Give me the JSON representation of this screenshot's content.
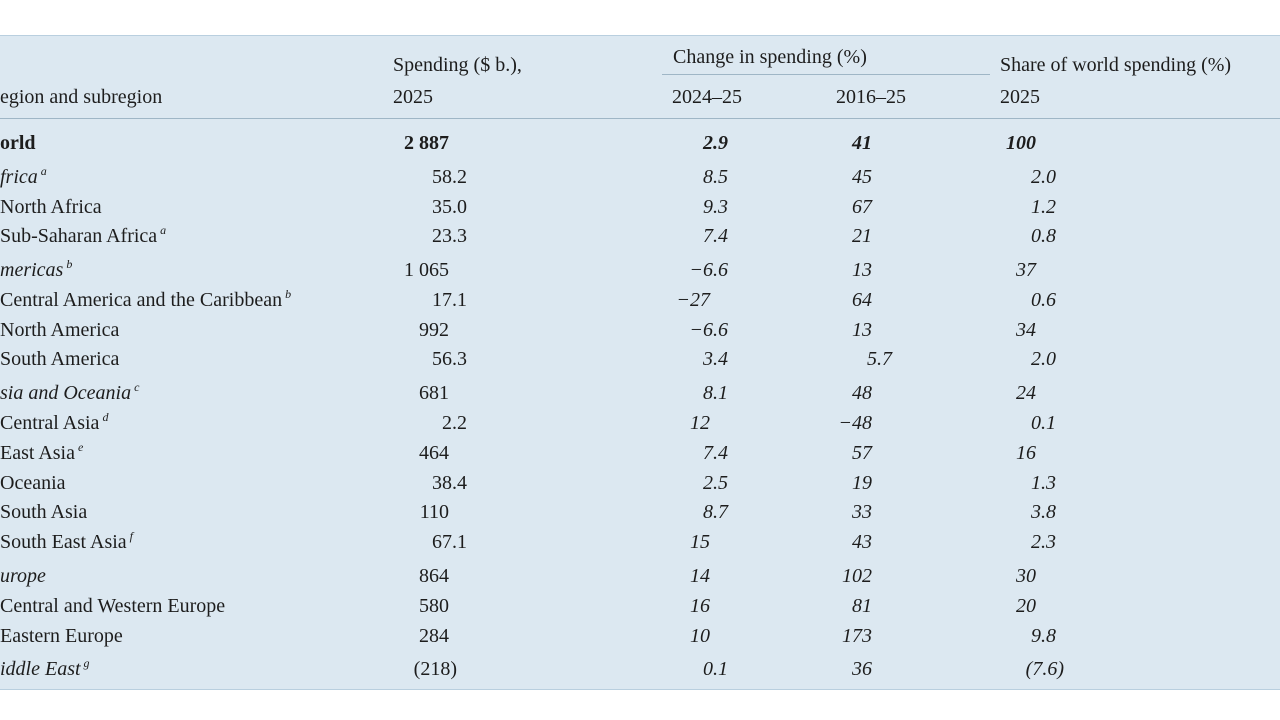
{
  "header": {
    "region_label": "egion and subregion",
    "spending_label": "Spending ($ b.),",
    "spending_year": "2025",
    "change_label": "Change in spending (%)",
    "change_short": "2024–25",
    "change_long": "2016–25",
    "share_label": "Share of world spending (%)",
    "share_year": "2025"
  },
  "table": {
    "rows": [
      {
        "region": "orld",
        "spending": "2 887",
        "change_2024_25": "2.9",
        "change_2016_25": "41",
        "share": "100"
      },
      {
        "region": "frica",
        "note": "a",
        "spending": "58.2",
        "change_2024_25": "8.5",
        "change_2016_25": "45",
        "share": "2.0"
      },
      {
        "region": "North Africa",
        "spending": "35.0",
        "change_2024_25": "9.3",
        "change_2016_25": "67",
        "share": "1.2"
      },
      {
        "region": "Sub-Saharan Africa",
        "note": "a",
        "spending": "23.3",
        "change_2024_25": "7.4",
        "change_2016_25": "21",
        "share": "0.8"
      },
      {
        "region": "mericas",
        "note": "b",
        "spending": "1 065",
        "change_2024_25": "−6.6",
        "change_2016_25": "13",
        "share": "37"
      },
      {
        "region": "Central America and the Caribbean",
        "note": "b",
        "spending": "17.1",
        "change_2024_25": "−27",
        "change_2016_25": "64",
        "share": "0.6"
      },
      {
        "region": "North America",
        "spending": "992",
        "change_2024_25": "−6.6",
        "change_2016_25": "13",
        "share": "34"
      },
      {
        "region": "South America",
        "spending": "56.3",
        "change_2024_25": "3.4",
        "change_2016_25": "5.7",
        "share": "2.0"
      },
      {
        "region": "sia and Oceania",
        "note": "c",
        "spending": "681",
        "change_2024_25": "8.1",
        "change_2016_25": "48",
        "share": "24"
      },
      {
        "region": "Central Asia",
        "note": "d",
        "spending": "2.2",
        "change_2024_25": "12",
        "change_2016_25": "−48",
        "share": "0.1"
      },
      {
        "region": "East Asia",
        "note": "e",
        "spending": "464",
        "change_2024_25": "7.4",
        "change_2016_25": "57",
        "share": "16"
      },
      {
        "region": "Oceania",
        "spending": "38.4",
        "change_2024_25": "2.5",
        "change_2016_25": "19",
        "share": "1.3"
      },
      {
        "region": "South Asia",
        "spending": "110",
        "change_2024_25": "8.7",
        "change_2016_25": "33",
        "share": "3.8"
      },
      {
        "region": "South East Asia",
        "note": "f",
        "spending": "67.1",
        "change_2024_25": "15",
        "change_2016_25": "43",
        "share": "2.3"
      },
      {
        "region": "urope",
        "spending": "864",
        "change_2024_25": "14",
        "change_2016_25": "102",
        "share": "30"
      },
      {
        "region": "Central and Western Europe",
        "spending": "580",
        "change_2024_25": "16",
        "change_2016_25": "81",
        "share": "20"
      },
      {
        "region": "Eastern Europe",
        "spending": "284",
        "change_2024_25": "10",
        "change_2016_25": "173",
        "share": "9.8"
      },
      {
        "region": "iddle East",
        "note": "g",
        "spending": "(218)",
        "change_2024_25": "0.1",
        "change_2016_25": "36",
        "share": "(7.6)"
      }
    ]
  }
}
